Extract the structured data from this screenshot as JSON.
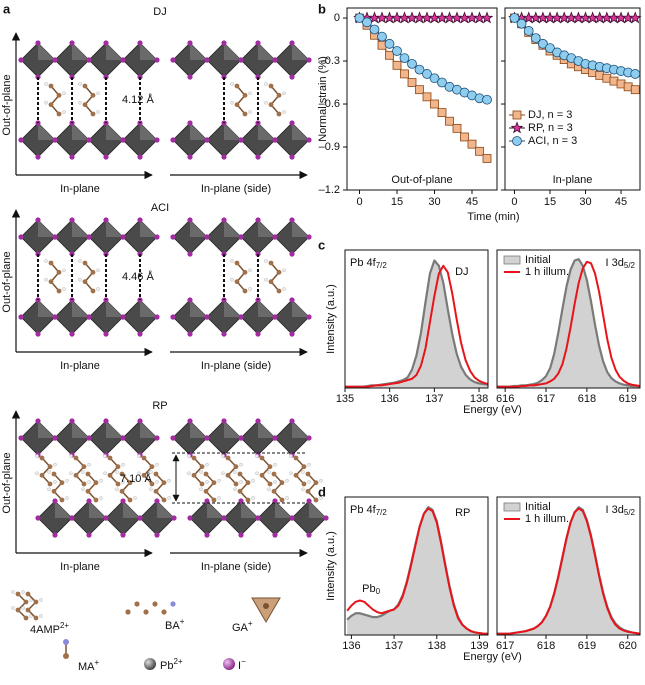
{
  "panel_a": {
    "letter": "a",
    "structures": [
      {
        "label": "DJ",
        "color": "#e3a232",
        "out_label": "Out-of-plane",
        "in_labels": [
          "In-plane",
          "In-plane (side)"
        ],
        "distance": "4.12 Å"
      },
      {
        "label": "ACI",
        "color": "#29b7c9",
        "out_label": "Out-of-plane",
        "in_labels": [
          "In-plane",
          "In-plane (side)"
        ],
        "distance": "4.46 Å"
      },
      {
        "label": "RP",
        "color": "#cc33cc",
        "out_label": "Out-of-plane",
        "in_labels": [
          "In-plane",
          "In-plane (side)"
        ],
        "distance": "7.10 Å"
      }
    ],
    "legend": [
      {
        "name": "4AMP",
        "charge": "2+"
      },
      {
        "name": "BA",
        "charge": "+"
      },
      {
        "name": "GA",
        "charge": "+"
      },
      {
        "name": "MA",
        "charge": "+"
      },
      {
        "name": "Pb",
        "charge": "2+"
      },
      {
        "name": "I",
        "charge": "−"
      }
    ]
  },
  "chart_data": [
    {
      "type": "line",
      "panel": "b",
      "ylabel": "Normal strain (%)",
      "xlabel": "Time (min)",
      "x": [
        0,
        3,
        6,
        9,
        12,
        15,
        18,
        21,
        24,
        27,
        30,
        33,
        36,
        39,
        42,
        45,
        48,
        51
      ],
      "xticks": [
        0,
        15,
        30,
        45
      ],
      "ylim": [
        -1.2,
        0.07
      ],
      "yticks": [
        0,
        {
          "value": -0.3,
          "label": "–0.3"
        },
        {
          "value": -0.6,
          "label": "–0.6"
        },
        {
          "value": -0.9,
          "label": "–0.9"
        },
        {
          "value": -1.2,
          "label": "–1.2"
        }
      ],
      "series": [
        {
          "name": "DJ, n = 3",
          "color": "#f2b68c",
          "edge_color": "#8b4513",
          "marker": "square"
        },
        {
          "name": "RP, n = 3",
          "color": "#d6359a",
          "edge_color": "#3a0a2a",
          "marker": "star"
        },
        {
          "name": "ACI, n = 3",
          "color": "#8fcdef",
          "edge_color": "#1b4f7a",
          "marker": "circle"
        }
      ],
      "subplots": [
        {
          "label": "Out-of-plane",
          "xlim": [
            -5,
            55
          ],
          "values": [
            [
              0,
              -0.05,
              -0.12,
              -0.19,
              -0.26,
              -0.33,
              -0.39,
              -0.45,
              -0.5,
              -0.55,
              -0.6,
              -0.66,
              -0.72,
              -0.77,
              -0.83,
              -0.88,
              -0.93,
              -0.98
            ],
            [
              0,
              0,
              0,
              0,
              0,
              0,
              0,
              0,
              0,
              0,
              0,
              0,
              0,
              0,
              0,
              0,
              0,
              0
            ],
            [
              0,
              -0.03,
              -0.08,
              -0.13,
              -0.18,
              -0.23,
              -0.28,
              -0.32,
              -0.36,
              -0.39,
              -0.42,
              -0.45,
              -0.48,
              -0.5,
              -0.52,
              -0.54,
              -0.56,
              -0.57
            ]
          ]
        },
        {
          "label": "In-plane",
          "xlim": [
            -4,
            53
          ],
          "values": [
            [
              0,
              -0.04,
              -0.1,
              -0.15,
              -0.19,
              -0.23,
              -0.26,
              -0.29,
              -0.32,
              -0.34,
              -0.36,
              -0.38,
              -0.4,
              -0.42,
              -0.44,
              -0.46,
              -0.48,
              -0.5
            ],
            [
              0,
              0,
              0,
              0,
              0,
              0,
              0,
              0,
              0,
              0,
              0,
              0,
              0,
              0,
              0,
              0,
              0,
              0
            ],
            [
              0,
              -0.04,
              -0.09,
              -0.14,
              -0.18,
              -0.21,
              -0.24,
              -0.26,
              -0.28,
              -0.3,
              -0.32,
              -0.33,
              -0.34,
              -0.35,
              -0.36,
              -0.37,
              -0.38,
              -0.39
            ]
          ]
        }
      ]
    },
    {
      "type": "xps",
      "panel": "c",
      "ylabel": "Intensity (a.u.)",
      "xlabel": "Energy (eV)",
      "ylim": [
        0,
        1.05
      ],
      "series": [
        {
          "name": "Initial",
          "color": "#d2d2d2",
          "edge_color": "#7a7a7a"
        },
        {
          "name": "1 h illum.",
          "color": "#e8141b"
        }
      ],
      "subplots": [
        {
          "label": {
            "text": "Pb 4f",
            "sub": "7/2"
          },
          "annotations": [
            {
              "text": "DJ",
              "color": "#e3a232"
            }
          ],
          "xlim": [
            135,
            138.2
          ],
          "xticks": [
            135,
            136,
            137,
            138
          ],
          "x": [
            135,
            135.1,
            135.2,
            135.3,
            135.4,
            135.5,
            135.6,
            135.7,
            135.8,
            135.9,
            136,
            136.1,
            136.2,
            136.3,
            136.4,
            136.5,
            136.6,
            136.7,
            136.8,
            136.9,
            137,
            137.1,
            137.2,
            137.3,
            137.4,
            137.5,
            137.6,
            137.7,
            137.8,
            137.9,
            138,
            138.1,
            138.2
          ],
          "values": [
            [
              0.01,
              0.01,
              0.01,
              0.01,
              0.01,
              0.015,
              0.02,
              0.02,
              0.025,
              0.03,
              0.035,
              0.04,
              0.05,
              0.06,
              0.08,
              0.14,
              0.25,
              0.42,
              0.65,
              0.87,
              0.97,
              0.93,
              0.8,
              0.6,
              0.41,
              0.26,
              0.16,
              0.1,
              0.065,
              0.045,
              0.035,
              0.03,
              0.025
            ],
            [
              0.01,
              0.01,
              0.01,
              0.01,
              0.01,
              0.01,
              0.015,
              0.02,
              0.02,
              0.025,
              0.03,
              0.035,
              0.04,
              0.05,
              0.06,
              0.07,
              0.1,
              0.17,
              0.3,
              0.5,
              0.7,
              0.87,
              0.93,
              0.88,
              0.72,
              0.52,
              0.34,
              0.21,
              0.13,
              0.08,
              0.055,
              0.04,
              0.03
            ]
          ]
        },
        {
          "label": {
            "text": "I 3d",
            "sub": "5/2"
          },
          "annotations": [],
          "xlim": [
            615.8,
            619.3
          ],
          "xticks": [
            616,
            617,
            618,
            619
          ],
          "x": [
            615.8,
            615.9,
            616,
            616.1,
            616.2,
            616.3,
            616.4,
            616.5,
            616.6,
            616.7,
            616.8,
            616.9,
            617,
            617.1,
            617.2,
            617.3,
            617.4,
            617.5,
            617.6,
            617.7,
            617.8,
            617.9,
            618,
            618.1,
            618.2,
            618.3,
            618.4,
            618.5,
            618.6,
            618.7,
            618.8,
            618.9,
            619,
            619.1,
            619.2,
            619.3
          ],
          "values": [
            [
              0.01,
              0.01,
              0.01,
              0.01,
              0.015,
              0.015,
              0.02,
              0.02,
              0.025,
              0.03,
              0.04,
              0.06,
              0.09,
              0.15,
              0.26,
              0.42,
              0.6,
              0.77,
              0.9,
              0.97,
              0.98,
              0.93,
              0.82,
              0.66,
              0.48,
              0.32,
              0.2,
              0.12,
              0.075,
              0.05,
              0.035,
              0.025,
              0.02,
              0.015,
              0.015,
              0.01
            ],
            [
              0.01,
              0.01,
              0.01,
              0.01,
              0.01,
              0.01,
              0.015,
              0.015,
              0.02,
              0.02,
              0.025,
              0.03,
              0.035,
              0.05,
              0.07,
              0.11,
              0.18,
              0.3,
              0.46,
              0.64,
              0.8,
              0.91,
              0.96,
              0.95,
              0.87,
              0.73,
              0.55,
              0.37,
              0.23,
              0.14,
              0.085,
              0.055,
              0.035,
              0.025,
              0.02,
              0.015
            ]
          ]
        }
      ]
    },
    {
      "type": "xps",
      "panel": "d",
      "ylabel": "Intensity (a.u.)",
      "xlabel": "Energy (eV)",
      "ylim": [
        0,
        1.08
      ],
      "series": [
        {
          "name": "Initial",
          "color": "#d2d2d2",
          "edge_color": "#7a7a7a"
        },
        {
          "name": "1 h illum.",
          "color": "#e8141b"
        }
      ],
      "subplots": [
        {
          "label": {
            "text": "Pb 4f",
            "sub": "7/2"
          },
          "annotations": [
            {
              "text": "RP",
              "color": "#cc33cc"
            },
            {
              "text": "Pb",
              "sub": "0",
              "color": "#d9822b"
            }
          ],
          "xlim": [
            135.85,
            139.2
          ],
          "xticks": [
            136,
            137,
            138,
            139
          ],
          "x": [
            135.9,
            136,
            136.1,
            136.2,
            136.3,
            136.4,
            136.5,
            136.6,
            136.7,
            136.8,
            136.9,
            137,
            137.1,
            137.2,
            137.3,
            137.4,
            137.5,
            137.6,
            137.7,
            137.8,
            137.9,
            138,
            138.1,
            138.2,
            138.3,
            138.4,
            138.5,
            138.6,
            138.7,
            138.8,
            138.9,
            139,
            139.1,
            139.2
          ],
          "values": [
            [
              0.12,
              0.15,
              0.17,
              0.17,
              0.16,
              0.15,
              0.14,
              0.14,
              0.15,
              0.17,
              0.19,
              0.2,
              0.24,
              0.31,
              0.42,
              0.56,
              0.71,
              0.85,
              0.95,
              1.0,
              0.98,
              0.89,
              0.73,
              0.55,
              0.38,
              0.24,
              0.14,
              0.08,
              0.05,
              0.03,
              0.02,
              0.015,
              0.01,
              0.01
            ],
            [
              0.19,
              0.23,
              0.26,
              0.27,
              0.26,
              0.23,
              0.2,
              0.18,
              0.17,
              0.18,
              0.19,
              0.2,
              0.23,
              0.3,
              0.41,
              0.55,
              0.7,
              0.85,
              0.95,
              0.99,
              0.97,
              0.88,
              0.72,
              0.54,
              0.37,
              0.23,
              0.13,
              0.08,
              0.05,
              0.03,
              0.02,
              0.015,
              0.01,
              0.01
            ]
          ]
        },
        {
          "label": {
            "text": "I 3d",
            "sub": "5/2"
          },
          "annotations": [],
          "xlim": [
            616.8,
            620.3
          ],
          "xticks": [
            617,
            618,
            619,
            620
          ],
          "x": [
            616.8,
            616.9,
            617,
            617.1,
            617.2,
            617.3,
            617.4,
            617.5,
            617.6,
            617.7,
            617.8,
            617.9,
            618,
            618.1,
            618.2,
            618.3,
            618.4,
            618.5,
            618.6,
            618.7,
            618.8,
            618.9,
            619,
            619.1,
            619.2,
            619.3,
            619.4,
            619.5,
            619.6,
            619.7,
            619.8,
            619.9,
            620,
            620.1,
            620.2,
            620.3
          ],
          "values": [
            [
              0.01,
              0.01,
              0.01,
              0.01,
              0.015,
              0.02,
              0.025,
              0.03,
              0.04,
              0.05,
              0.07,
              0.1,
              0.15,
              0.22,
              0.32,
              0.45,
              0.6,
              0.75,
              0.88,
              0.96,
              1.0,
              0.98,
              0.9,
              0.78,
              0.63,
              0.47,
              0.33,
              0.22,
              0.14,
              0.09,
              0.06,
              0.04,
              0.03,
              0.02,
              0.015,
              0.01
            ],
            [
              0.01,
              0.01,
              0.01,
              0.01,
              0.015,
              0.02,
              0.025,
              0.03,
              0.04,
              0.05,
              0.07,
              0.1,
              0.15,
              0.22,
              0.33,
              0.46,
              0.61,
              0.76,
              0.88,
              0.96,
              0.99,
              0.97,
              0.89,
              0.77,
              0.62,
              0.46,
              0.32,
              0.21,
              0.13,
              0.08,
              0.05,
              0.035,
              0.025,
              0.02,
              0.015,
              0.01
            ]
          ]
        }
      ]
    }
  ]
}
